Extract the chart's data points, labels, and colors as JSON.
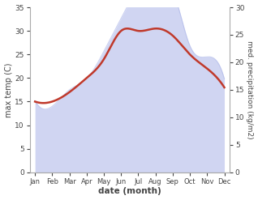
{
  "months": [
    "Jan",
    "Feb",
    "Mar",
    "Apr",
    "May",
    "Jun",
    "Jul",
    "Aug",
    "Sep",
    "Oct",
    "Nov",
    "Dec"
  ],
  "max_temp": [
    15,
    15,
    17,
    20,
    24,
    30,
    30,
    30.5,
    29,
    25,
    22,
    18
  ],
  "precipitation": [
    13,
    12,
    15,
    17,
    22,
    28,
    33,
    34,
    33,
    23,
    21,
    17
  ],
  "temp_color": "#c0392b",
  "precip_color": "#aab4e8",
  "precip_fill_alpha": 0.55,
  "temp_ylim": [
    0,
    35
  ],
  "precip_ylim": [
    0,
    30
  ],
  "temp_yticks": [
    0,
    5,
    10,
    15,
    20,
    25,
    30,
    35
  ],
  "precip_yticks": [
    0,
    5,
    10,
    15,
    20,
    25,
    30
  ],
  "xlabel": "date (month)",
  "ylabel_left": "max temp (C)",
  "ylabel_right": "med. precipitation (kg/m2)",
  "bg_color": "#ffffff",
  "spine_color": "#aaaaaa",
  "label_color": "#444444"
}
